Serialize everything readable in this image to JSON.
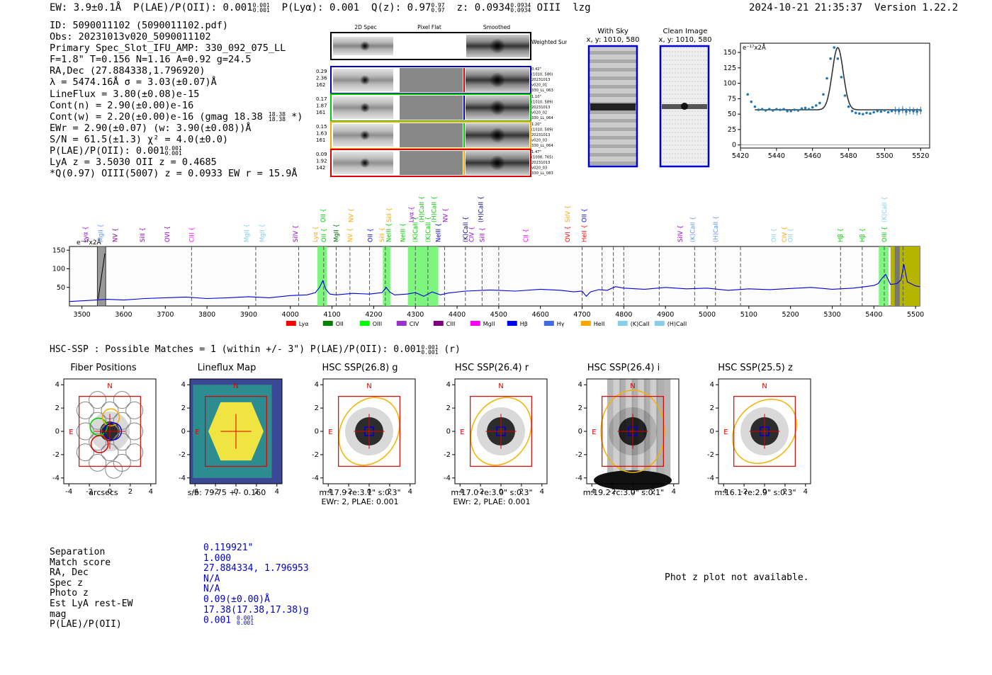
{
  "header": {
    "ew": "EW: 3.9±0.1Å",
    "plae_label": "P(LAE)/P(OII):",
    "plae_val": "0.001",
    "plae_sup": "0.001",
    "plae_sub": "0.001",
    "plya": "P(Lyα): 0.001",
    "qz_label": "Q(z): 0.97",
    "qz_sup": "0.97",
    "qz_sub": "0.97",
    "z_label": "z: 0.0934",
    "z_sup": "0.0934",
    "z_sub": "0.0934",
    "line": "OIII",
    "flag": "lzg",
    "datetime": "2024-10-21 21:35:37",
    "version": "Version 1.22.2"
  },
  "info": {
    "id": "ID: 5090011102 (5090011102.pdf)",
    "obs": "Obs: 20231013v020_5090011102",
    "primary": "Primary Spec_Slot_IFU_AMP: 330_092_075_LL",
    "params": "F=1.8\"  T=0.156  N=1.16  A=0.92  g=24.5",
    "radec": "RA,Dec (27.884338,1.796920)",
    "lambda": "λ = 5474.16Å  σ = 3.03(±0.07)Å",
    "lineflux": "LineFlux = 3.80(±0.08)e-15",
    "contn": "Cont(n) = 2.90(±0.00)e-16",
    "contw_pre": "Cont(w) = 2.20(±0.00)e-16 (gmag 18.38",
    "contw_sup": "18.38",
    "contw_sub": "18.38",
    "contw_post": "*)",
    "ewr": "EWr = 2.90(±0.07) (w: 3.90(±0.08))Å",
    "sn": "S/N = 61.5(±1.3)  χ² = 4.0(±0.0)",
    "plae_pre": "P(LAE)/P(OII): 0.001",
    "plae_sup": "0.001",
    "plae_sub": "0.001",
    "lya": "LyA z = 3.5030  OII z = 0.4685",
    "qline": "*Q(0.97) OIII(5007) z = 0.0933  EW r = 15.9Å"
  },
  "cutouts": {
    "col_headers": [
      "2D Spec",
      "Pixel Flat",
      "Smoothed"
    ],
    "weighted": "Weighted Sum",
    "rows": [
      {
        "left": [
          "0.29",
          "2.36",
          "162"
        ],
        "right": [
          "0.42\"",
          "(1010, 580)",
          "20231013",
          "v020_01",
          "330_LL_063"
        ]
      },
      {
        "left": [
          "0.17",
          "1.87",
          "161"
        ],
        "right": [
          "1.10\"",
          "(1010, 589)",
          "20231013",
          "v020_02",
          "330_LL_064"
        ]
      },
      {
        "left": [
          "0.15",
          "1.63",
          "161"
        ],
        "right": [
          "1.20\"",
          "(1010, 589)",
          "20231013",
          "v020_03",
          "330_LL_064"
        ]
      },
      {
        "left": [
          "0.09",
          "1.92",
          "142"
        ],
        "right": [
          "1.47\"",
          "(1008, 765)",
          "20231013",
          "v020_03",
          "330_LL_083"
        ]
      }
    ],
    "with_sky": "With Sky",
    "with_sky_xy": "x, y: 1010, 580",
    "clean": "Clean Image",
    "clean_xy": "x, y: 1010, 580"
  },
  "zoom_chart": {
    "type": "scatter",
    "ylabel": "e⁻¹⁷x2Å",
    "xlim": [
      5420,
      5525
    ],
    "ylim": [
      -5,
      165
    ],
    "xticks": [
      5420,
      5440,
      5460,
      5480,
      5500,
      5520
    ],
    "yticks": [
      0,
      25,
      50,
      75,
      100,
      125,
      150
    ],
    "x": [
      5424,
      5426,
      5428,
      5430,
      5432,
      5434,
      5436,
      5438,
      5440,
      5442,
      5444,
      5446,
      5448,
      5450,
      5452,
      5454,
      5456,
      5458,
      5460,
      5462,
      5464,
      5466,
      5468,
      5470,
      5472,
      5474,
      5476,
      5478,
      5480,
      5482,
      5484,
      5486,
      5488,
      5490,
      5492,
      5494,
      5496,
      5498,
      5500,
      5502,
      5504,
      5506,
      5508,
      5510,
      5512,
      5514,
      5516,
      5518,
      5520
    ],
    "y": [
      82,
      70,
      62,
      57,
      58,
      56,
      58,
      56,
      58,
      57,
      58,
      55,
      55,
      57,
      56,
      59,
      60,
      58,
      61,
      64,
      68,
      82,
      108,
      140,
      158,
      140,
      110,
      80,
      62,
      55,
      52,
      51,
      50,
      52,
      51,
      53,
      55,
      54,
      56,
      53,
      55,
      56,
      55,
      57,
      54,
      56,
      55,
      54,
      56
    ]
  },
  "spectrum_chart": {
    "type": "line",
    "ylabel": "e⁻¹⁷x2Å",
    "xlim": [
      3470,
      5510
    ],
    "ylim": [
      0,
      160
    ],
    "xticks": [
      3500,
      3600,
      3700,
      3800,
      3900,
      4000,
      4100,
      4200,
      4300,
      4400,
      4500,
      4600,
      4700,
      4800,
      4900,
      5000,
      5100,
      5200,
      5300,
      5400,
      5500
    ],
    "yticks": [
      50,
      100,
      150
    ],
    "line_labels": [
      {
        "w": 3508,
        "t": "Lyα",
        "c": "#9400d3",
        "row": 0
      },
      {
        "w": 3545,
        "t": "MgII",
        "c": "#6495ed",
        "row": 0
      },
      {
        "w": 3580,
        "t": "NV",
        "c": "#8b008b",
        "row": 0
      },
      {
        "w": 3645,
        "t": "SiII",
        "c": "#9400d3",
        "row": 0
      },
      {
        "w": 3705,
        "t": "OVI",
        "c": "#9400d3",
        "row": 0
      },
      {
        "w": 3763,
        "t": "CIII",
        "c": "#ff00ff",
        "row": 0
      },
      {
        "w": 3895,
        "t": "MgII",
        "c": "#87ceeb",
        "row": 0
      },
      {
        "w": 3932,
        "t": "MgII",
        "c": "#87ceeb",
        "row": 0
      },
      {
        "w": 4012,
        "t": "SiIV",
        "c": "#9400d3",
        "row": 0
      },
      {
        "w": 4060,
        "t": "Lyα",
        "c": "#ffa500",
        "row": 0
      },
      {
        "w": 4080,
        "t": "OII",
        "c": "#00cc00",
        "row": 0
      },
      {
        "w": 4110,
        "t": "MgII",
        "c": "#006400",
        "row": 0
      },
      {
        "w": 4143,
        "t": "NV",
        "c": "#ffa500",
        "row": 0
      },
      {
        "w": 4192,
        "t": "OII",
        "c": "#0000cd",
        "row": 0
      },
      {
        "w": 4220,
        "t": "SiII",
        "c": "#ffa500",
        "row": 0
      },
      {
        "w": 4236,
        "t": "NeIII",
        "c": "#00cc00",
        "row": 0
      },
      {
        "w": 4270,
        "t": "NeIII",
        "c": "#00cc00",
        "row": 0
      },
      {
        "w": 4300,
        "t": "(K)CaII",
        "c": "#00cc00",
        "row": 0
      },
      {
        "w": 4330,
        "t": "(K)CaII",
        "c": "#00cc00",
        "row": 0
      },
      {
        "w": 4355,
        "t": "NeIII",
        "c": "#0000cd",
        "row": 0
      },
      {
        "w": 4420,
        "t": "(K)CaII",
        "c": "#00008b",
        "row": 0
      },
      {
        "w": 4435,
        "t": "CIV",
        "c": "#9400d3",
        "row": 0
      },
      {
        "w": 4460,
        "t": "SiII",
        "c": "#9400d3",
        "row": 0
      },
      {
        "w": 4565,
        "t": "CII",
        "c": "#ff00ff",
        "row": 0
      },
      {
        "w": 4665,
        "t": "OVI",
        "c": "#ff0000",
        "row": 0
      },
      {
        "w": 4705,
        "t": "HeII",
        "c": "#ff0000",
        "row": 0
      },
      {
        "w": 4935,
        "t": "SiIV",
        "c": "#9400d3",
        "row": 0
      },
      {
        "w": 4965,
        "t": "(K)CaII",
        "c": "#6495ed",
        "row": 0
      },
      {
        "w": 5020,
        "t": "(H)CaII",
        "c": "#6495ed",
        "row": 0
      },
      {
        "w": 5160,
        "t": "OII",
        "c": "#87ceeb",
        "row": 0
      },
      {
        "w": 5185,
        "t": "CIV",
        "c": "#ffa500",
        "row": 0
      },
      {
        "w": 5200,
        "t": "OII",
        "c": "#87ceeb",
        "row": 0
      },
      {
        "w": 5320,
        "t": "Hβ",
        "c": "#00cc00",
        "row": 0
      },
      {
        "w": 5372,
        "t": "Hβ",
        "c": "#00cc00",
        "row": 0
      },
      {
        "w": 5425,
        "t": "OIII",
        "c": "#00cc00",
        "row": 0
      },
      {
        "w": 4079,
        "t": "OII",
        "c": "#00cc00",
        "row": 1
      },
      {
        "w": 4146,
        "t": "NV",
        "c": "#ffa500",
        "row": 1
      },
      {
        "w": 4237,
        "t": "SiII",
        "c": "#ffa500",
        "row": 1
      },
      {
        "w": 4290,
        "t": "Lyα",
        "c": "#9400d3",
        "row": 1
      },
      {
        "w": 4315,
        "t": "(H)CaII",
        "c": "#00cc00",
        "row": 1
      },
      {
        "w": 4345,
        "t": "(H)CaII",
        "c": "#00cc00",
        "row": 1
      },
      {
        "w": 4372,
        "t": "NV",
        "c": "#9400d3",
        "row": 1
      },
      {
        "w": 4457,
        "t": "(H)CaII",
        "c": "#00008b",
        "row": 1
      },
      {
        "w": 4665,
        "t": "SiIV",
        "c": "#ffa500",
        "row": 1
      },
      {
        "w": 4705,
        "t": "OII",
        "c": "#0000cd",
        "row": 1
      },
      {
        "w": 5425,
        "t": "(K)CaII",
        "c": "#87ceeb",
        "row": 1
      }
    ],
    "legend": [
      {
        "t": "Lyα",
        "c": "#ff0000"
      },
      {
        "t": "OII",
        "c": "#008000"
      },
      {
        "t": "OIII",
        "c": "#00ff00"
      },
      {
        "t": "CIV",
        "c": "#9932cc"
      },
      {
        "t": "CIII",
        "c": "#800080"
      },
      {
        "t": "MgII",
        "c": "#ff00ff"
      },
      {
        "t": "Hβ",
        "c": "#0000ff"
      },
      {
        "t": "Hγ",
        "c": "#4169e1"
      },
      {
        "t": "HeII",
        "c": "#ffa500"
      },
      {
        "t": "(K)CaII",
        "c": "#87ceeb"
      },
      {
        "t": "(H)CaII",
        "c": "#87ceeb"
      }
    ],
    "x": [
      3470,
      3520,
      3560,
      3600,
      3650,
      3700,
      3750,
      3800,
      3850,
      3900,
      3950,
      4000,
      4040,
      4060,
      4070,
      4078,
      4085,
      4095,
      4110,
      4150,
      4190,
      4220,
      4230,
      4238,
      4250,
      4280,
      4300,
      4320,
      4340,
      4360,
      4380,
      4420,
      4480,
      4540,
      4600,
      4650,
      4680,
      4700,
      4710,
      4720,
      4740,
      4760,
      4780,
      4800,
      4850,
      4900,
      4950,
      5000,
      5050,
      5100,
      5150,
      5200,
      5250,
      5300,
      5350,
      5380,
      5400,
      5410,
      5420,
      5428,
      5440,
      5455,
      5465,
      5472,
      5480,
      5500,
      5510
    ],
    "y": [
      12,
      15,
      18,
      16,
      20,
      22,
      24,
      20,
      22,
      25,
      22,
      28,
      30,
      36,
      50,
      68,
      45,
      32,
      30,
      34,
      32,
      36,
      50,
      38,
      30,
      32,
      36,
      26,
      38,
      30,
      35,
      40,
      43,
      40,
      45,
      42,
      38,
      40,
      26,
      38,
      44,
      42,
      52,
      48,
      45,
      50,
      46,
      48,
      42,
      46,
      44,
      47,
      50,
      45,
      48,
      52,
      55,
      60,
      75,
      85,
      58,
      60,
      70,
      112,
      65,
      54,
      52
    ]
  },
  "hsc": {
    "title": "HSC-SSP : Possible Matches = 1 (within +/- 3\")  P(LAE)/P(OII): 0.001",
    "sup": "0.001",
    "sub": "0.001",
    "band": "(r)",
    "panels": [
      {
        "title": "Fiber Positions",
        "cap1": "arcsecs",
        "cap2": ""
      },
      {
        "title": "Lineflux Map",
        "cap1": "s/b: 79.75 +/- 0.160",
        "cap2": ""
      },
      {
        "title": "HSC SSP(26.8) g",
        "cap1": "m:17.9  re:3.1\"  s:0.3\"",
        "cap2": "EWr: 2, PLAE: 0.001"
      },
      {
        "title": "HSC SSP(26.4) r",
        "cap1": "m:17.0  re:3.0\"  s:0.3\"",
        "cap2": "EWr: 2, PLAE: 0.001"
      },
      {
        "title": "HSC SSP(26.4) i",
        "cap1": "m:19.2  rc:3.0\"  s:0.1\"",
        "cap2": ""
      },
      {
        "title": "HSC SSP(25.5) z",
        "cap1": "m:16.1  re:2.9\"  s:0.3\"",
        "cap2": ""
      }
    ],
    "ticks": [
      "-4",
      "-2",
      "0",
      "2",
      "4"
    ],
    "north": "N",
    "east": "E"
  },
  "match": {
    "labels": [
      "Separation",
      "Match score",
      "RA, Dec",
      "Spec z",
      "Photo z",
      "Est LyA rest-EW",
      "mag",
      "P(LAE)/P(OII)"
    ],
    "values": [
      "0.119921\"",
      "1.000",
      "27.884334, 1.796953",
      "N/A",
      "N/A",
      "0.09(±0.00)Å",
      "17.38(17.38,17.38)g",
      "0.001"
    ],
    "plae_sup": "0.001",
    "plae_sub": "0.001",
    "phot_note": "Phot z plot not available."
  }
}
